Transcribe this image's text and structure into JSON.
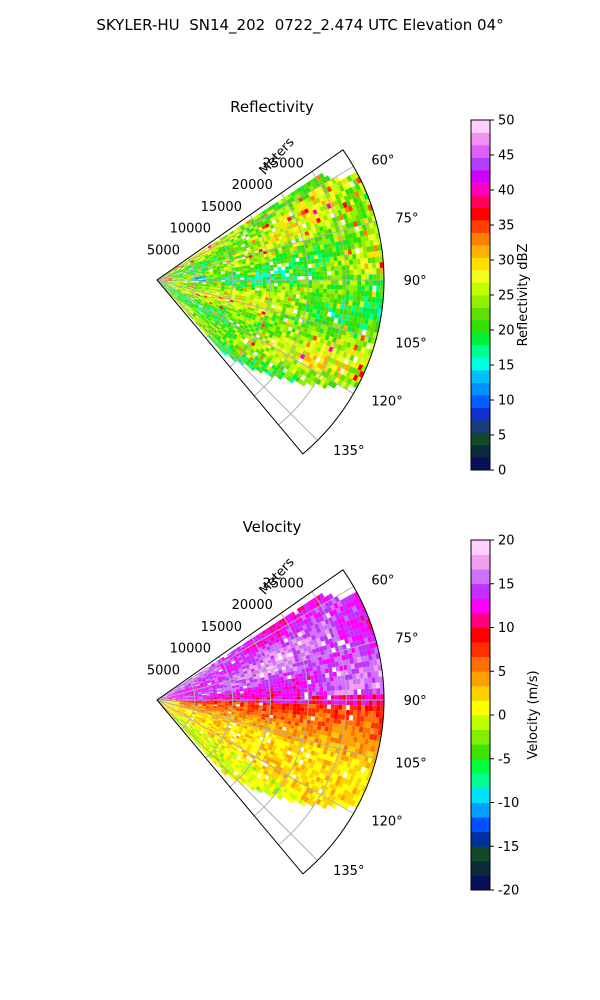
{
  "suptitle": "SKYLER-HU  SN14_202  0722_2.474 UTC Elevation 04°",
  "chart_data": [
    {
      "type": "heatmap",
      "subtype": "polar-sector",
      "title": "Reflectivity",
      "radial_label": "Meters",
      "radial_ticks": [
        "5000",
        "10000",
        "15000",
        "20000",
        "25000"
      ],
      "radial_tick_values": [
        5000,
        10000,
        15000,
        20000,
        25000
      ],
      "radial_range": [
        0,
        30000
      ],
      "azimuth_ticks": [
        "60°",
        "75°",
        "90°",
        "105°",
        "120°",
        "135°"
      ],
      "azimuth_tick_values": [
        60,
        75,
        90,
        105,
        120,
        135
      ],
      "azimuth_range": [
        55,
        140
      ],
      "grid": true,
      "colorbar": {
        "label": "Reflectivity dBZ",
        "ticks": [
          "0",
          "5",
          "10",
          "15",
          "20",
          "25",
          "30",
          "35",
          "40",
          "45",
          "50"
        ],
        "range": [
          0,
          50
        ],
        "colors": [
          "#0a0f5a",
          "#0b2a3a",
          "#0f4a2a",
          "#1a3a7a",
          "#1030d0",
          "#0060ff",
          "#0090ff",
          "#00c0ff",
          "#00ffe0",
          "#00ff90",
          "#00f040",
          "#30e000",
          "#60e000",
          "#90f000",
          "#c0ff00",
          "#f0ff20",
          "#ffe000",
          "#ffb000",
          "#ff8000",
          "#ff4000",
          "#ff0000",
          "#ff0060",
          "#ff00c0",
          "#d000ff",
          "#b040ff",
          "#e060ff",
          "#f090f0",
          "#ffd0ff"
        ]
      },
      "field_description": "mostly 18-30 dBZ (green-yellow) with scattered 30-38 dBZ cells; low values near the radar"
    },
    {
      "type": "heatmap",
      "subtype": "polar-sector",
      "title": "Velocity",
      "radial_label": "Meters",
      "radial_ticks": [
        "5000",
        "10000",
        "15000",
        "20000",
        "25000"
      ],
      "radial_tick_values": [
        5000,
        10000,
        15000,
        20000,
        25000
      ],
      "radial_range": [
        0,
        30000
      ],
      "azimuth_ticks": [
        "60°",
        "75°",
        "90°",
        "105°",
        "120°",
        "135°"
      ],
      "azimuth_tick_values": [
        60,
        75,
        90,
        105,
        120,
        135
      ],
      "azimuth_range": [
        55,
        140
      ],
      "grid": true,
      "colorbar": {
        "label": "Velocity (m/s)",
        "ticks": [
          "-20",
          "-15",
          "-10",
          "-5",
          "0",
          "5",
          "10",
          "15",
          "20"
        ],
        "range": [
          -20,
          20
        ],
        "colors": [
          "#0a0f5a",
          "#0b2a3a",
          "#0f4a2a",
          "#0030a0",
          "#0050ff",
          "#00a0ff",
          "#00e0ff",
          "#00ff90",
          "#00ff40",
          "#40e000",
          "#80f000",
          "#c0ff00",
          "#ffff00",
          "#ffd000",
          "#ffa000",
          "#ff7000",
          "#ff3000",
          "#ff0000",
          "#ff0080",
          "#ff00ff",
          "#c030ff",
          "#d070ff",
          "#f0a0f0",
          "#ffd0ff"
        ]
      },
      "field_description": "+12 to +18 m/s (violet/magenta) north of 90°, +5 to +10 m/s (red-orange) just south, 0 to +3 m/s (yellow) further south"
    }
  ]
}
